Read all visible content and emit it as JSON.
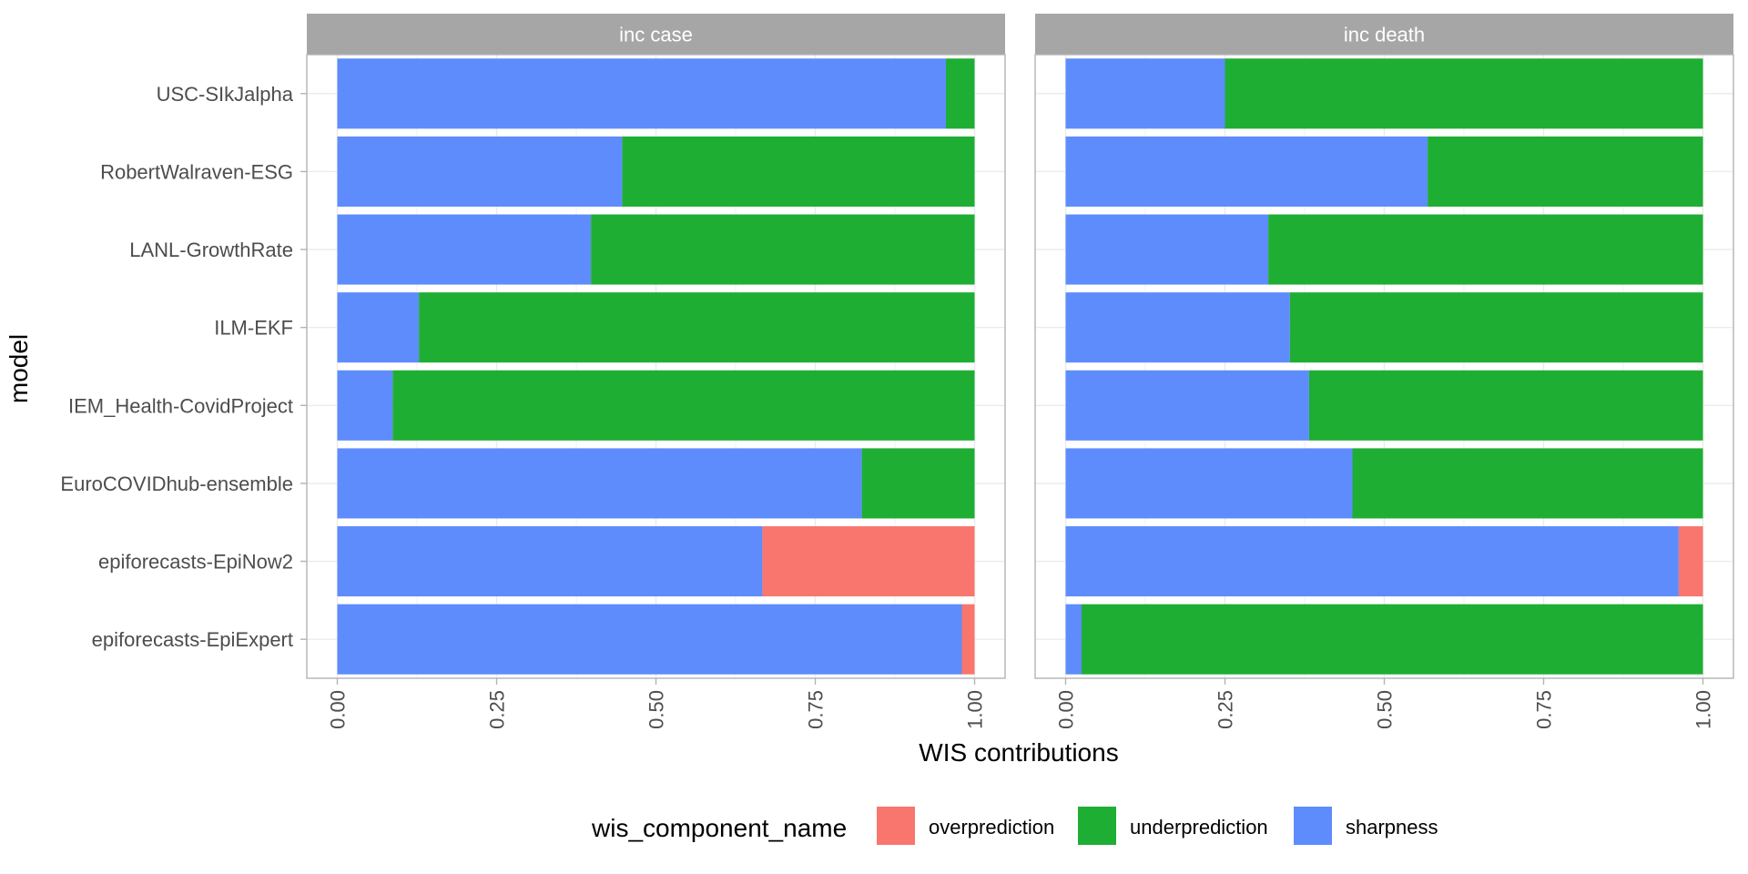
{
  "chart_data": {
    "type": "bar",
    "orientation": "horizontal",
    "stacked": true,
    "xlabel": "WIS contributions",
    "ylabel": "model",
    "xlim": [
      0,
      1
    ],
    "x_ticks": [
      "0.00",
      "0.25",
      "0.50",
      "0.75",
      "1.00"
    ],
    "categories": [
      "USC-SIkJalpha",
      "RobertWalraven-ESG",
      "LANL-GrowthRate",
      "ILM-EKF",
      "IEM_Health-CovidProject",
      "EuroCOVIDhub-ensemble",
      "epiforecasts-EpiNow2",
      "epiforecasts-EpiExpert"
    ],
    "stack_order": [
      "sharpness",
      "underprediction",
      "overprediction"
    ],
    "legend": {
      "title": "wis_component_name",
      "position": "bottom",
      "items": [
        {
          "name": "overprediction",
          "color": "#F8766D"
        },
        {
          "name": "underprediction",
          "color": "#1EAE34"
        },
        {
          "name": "sharpness",
          "color": "#5E8CFC"
        }
      ]
    },
    "grid": true,
    "panels": [
      {
        "title": "inc case",
        "series": [
          {
            "name": "sharpness",
            "values": [
              0.955,
              0.447,
              0.398,
              0.128,
              0.087,
              0.823,
              0.667,
              0.98
            ]
          },
          {
            "name": "underprediction",
            "values": [
              0.045,
              0.553,
              0.602,
              0.872,
              0.913,
              0.177,
              0.0,
              0.0
            ]
          },
          {
            "name": "overprediction",
            "values": [
              0.0,
              0.0,
              0.0,
              0.0,
              0.0,
              0.0,
              0.333,
              0.02
            ]
          }
        ]
      },
      {
        "title": "inc death",
        "series": [
          {
            "name": "sharpness",
            "values": [
              0.25,
              0.568,
              0.318,
              0.352,
              0.382,
              0.45,
              0.962,
              0.025
            ]
          },
          {
            "name": "underprediction",
            "values": [
              0.75,
              0.432,
              0.682,
              0.648,
              0.618,
              0.55,
              0.0,
              0.975
            ]
          },
          {
            "name": "overprediction",
            "values": [
              0.0,
              0.0,
              0.0,
              0.0,
              0.0,
              0.0,
              0.038,
              0.0
            ]
          }
        ]
      }
    ]
  }
}
